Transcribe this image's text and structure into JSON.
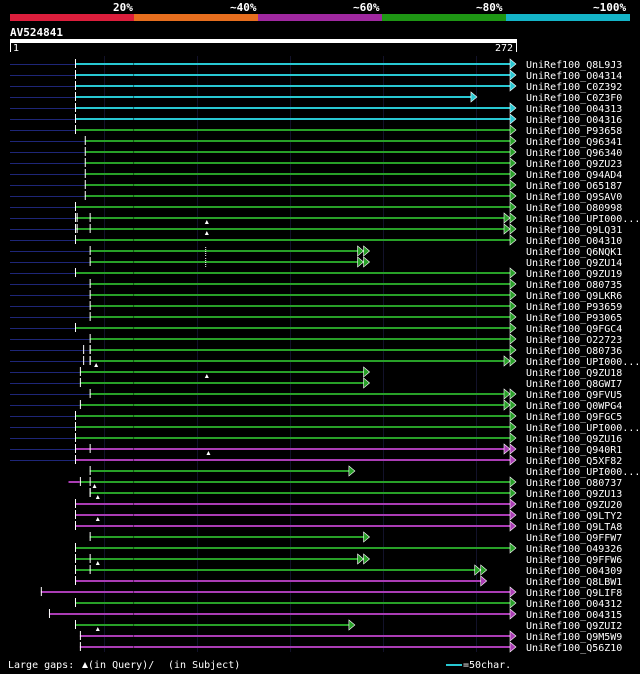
{
  "colors": {
    "background": "#000000",
    "c20": "#dc1e3c",
    "c40": "#e66e1e",
    "c60": "#a028a0",
    "c80": "#1e9614",
    "c100": "#14b4c8",
    "green": "#28a028",
    "magenta": "#aa3cb4",
    "cyan": "#28c8d2",
    "unaligned": "#1e2678",
    "queryBar": "#ffffff",
    "text": "#ffffff"
  },
  "legend": {
    "segments": [
      {
        "label": "20%",
        "color": "#dc1e3c"
      },
      {
        "label": "~40%",
        "color": "#e66e1e"
      },
      {
        "label": "~60%",
        "color": "#a028a0"
      },
      {
        "label": "~80%",
        "color": "#1e9614"
      },
      {
        "label": "~100%",
        "color": "#14b4c8"
      }
    ]
  },
  "query": {
    "id": "AV524841",
    "start_label": "1",
    "end_label": "272",
    "length": 272
  },
  "footer": {
    "large_gaps_label": "Large gaps:",
    "in_query": "(in Query)/",
    "in_subject": "(in Subject)",
    "scale_label": "=50char."
  },
  "hits": [
    {
      "name": "UniRef100_Q8L9J3",
      "color": "cyan",
      "qs": 1,
      "qe": 272,
      "lead": 60,
      "arrow": "single"
    },
    {
      "name": "UniRef100_O04314",
      "color": "cyan",
      "qs": 1,
      "qe": 272,
      "lead": 60,
      "arrow": "single"
    },
    {
      "name": "UniRef100_C0Z392",
      "color": "cyan",
      "qs": 1,
      "qe": 272,
      "lead": 60,
      "arrow": "single"
    },
    {
      "name": "UniRef100_C0Z3F0",
      "color": "cyan",
      "qs": 1,
      "qe": 248,
      "lead": 60,
      "arrow": "single"
    },
    {
      "name": "UniRef100_O04313",
      "color": "cyan",
      "qs": 1,
      "qe": 272,
      "lead": 60,
      "arrow": "single"
    },
    {
      "name": "UniRef100_O04316",
      "color": "cyan",
      "qs": 1,
      "qe": 272,
      "lead": 60,
      "arrow": "single"
    },
    {
      "name": "UniRef100_P93658",
      "color": "green",
      "qs": 1,
      "qe": 272,
      "lead": 60,
      "arrow": "single"
    },
    {
      "name": "UniRef100_Q96341",
      "color": "green",
      "qs": 7,
      "qe": 272,
      "lead": 60,
      "arrow": "single"
    },
    {
      "name": "UniRef100_Q96340",
      "color": "green",
      "qs": 7,
      "qe": 272,
      "lead": 60,
      "arrow": "single"
    },
    {
      "name": "UniRef100_Q9ZU23",
      "color": "green",
      "qs": 7,
      "qe": 272,
      "lead": 60,
      "arrow": "single"
    },
    {
      "name": "UniRef100_Q94AD4",
      "color": "green",
      "qs": 7,
      "qe": 272,
      "lead": 60,
      "arrow": "single"
    },
    {
      "name": "UniRef100_O65187",
      "color": "green",
      "qs": 7,
      "qe": 272,
      "lead": 60,
      "arrow": "single"
    },
    {
      "name": "UniRef100_Q9SAV0",
      "color": "green",
      "qs": 7,
      "qe": 272,
      "lead": 60,
      "arrow": "single"
    },
    {
      "name": "UniRef100_O80998",
      "color": "green",
      "qs": 1,
      "qe": 272,
      "lead": 60,
      "arrow": "single"
    },
    {
      "name": "UniRef100_UPI000...",
      "color": "green",
      "qs": 1,
      "qe": 272,
      "lead": 60,
      "arrow": "double",
      "gapQ": [
        82
      ],
      "ticks": [
        2,
        10
      ]
    },
    {
      "name": "UniRef100_Q9LQ31",
      "color": "green",
      "qs": 1,
      "qe": 272,
      "lead": 60,
      "arrow": "double",
      "gapQ": [
        82
      ],
      "ticks": [
        2,
        10
      ]
    },
    {
      "name": "UniRef100_O04310",
      "color": "green",
      "qs": 1,
      "qe": 272,
      "lead": 60,
      "arrow": "single"
    },
    {
      "name": "UniRef100_Q6NQK1",
      "color": "green",
      "qs": 10,
      "qe": 182,
      "lead": 60,
      "arrow": "double",
      "dash": 81
    },
    {
      "name": "UniRef100_Q9ZU14",
      "color": "green",
      "qs": 10,
      "qe": 182,
      "lead": 60,
      "arrow": "double",
      "dash": 81
    },
    {
      "name": "UniRef100_Q9ZU19",
      "color": "green",
      "qs": 1,
      "qe": 272,
      "lead": 60,
      "arrow": "single"
    },
    {
      "name": "UniRef100_O80735",
      "color": "green",
      "qs": 10,
      "qe": 272,
      "lead": 60,
      "arrow": "single"
    },
    {
      "name": "UniRef100_Q9LKR6",
      "color": "green",
      "qs": 10,
      "qe": 272,
      "lead": 60,
      "arrow": "single"
    },
    {
      "name": "UniRef100_P93659",
      "color": "green",
      "qs": 10,
      "qe": 272,
      "lead": 60,
      "arrow": "single"
    },
    {
      "name": "UniRef100_P93065",
      "color": "green",
      "qs": 10,
      "qe": 272,
      "lead": 60,
      "arrow": "single"
    },
    {
      "name": "UniRef100_Q9FGC4",
      "color": "green",
      "qs": 1,
      "qe": 272,
      "lead": 60,
      "arrow": "single"
    },
    {
      "name": "UniRef100_O22723",
      "color": "green",
      "qs": 10,
      "qe": 272,
      "lead": 60,
      "arrow": "single"
    },
    {
      "name": "UniRef100_O80736",
      "color": "green",
      "qs": 10,
      "qe": 272,
      "lead": 60,
      "arrow": "single",
      "ticks": [
        6,
        10
      ]
    },
    {
      "name": "UniRef100_UPI000...",
      "color": "green",
      "qs": 10,
      "qe": 272,
      "lead": 60,
      "arrow": "double",
      "gapQ": [
        14
      ],
      "ticks": [
        6,
        10
      ]
    },
    {
      "name": "UniRef100_Q9ZU18",
      "color": "green",
      "qs": 4,
      "qe": 182,
      "lead": 60,
      "arrow": "single",
      "gapQ": [
        82
      ]
    },
    {
      "name": "UniRef100_Q8GWI7",
      "color": "green",
      "qs": 4,
      "qe": 182,
      "lead": 60,
      "arrow": "single"
    },
    {
      "name": "UniRef100_Q9FVU5",
      "color": "green",
      "qs": 10,
      "qe": 272,
      "lead": 60,
      "arrow": "double"
    },
    {
      "name": "UniRef100_Q0WPG4",
      "color": "green",
      "qs": 4,
      "qe": 272,
      "lead": 60,
      "arrow": "double"
    },
    {
      "name": "UniRef100_Q9FGC5",
      "color": "green",
      "qs": 1,
      "qe": 272,
      "lead": 60,
      "arrow": "single"
    },
    {
      "name": "UniRef100_UPI000...",
      "color": "green",
      "qs": 1,
      "qe": 272,
      "lead": 60,
      "arrow": "single"
    },
    {
      "name": "UniRef100_Q9ZU16",
      "color": "green",
      "qs": 1,
      "qe": 272,
      "lead": 60,
      "arrow": "single"
    },
    {
      "name": "UniRef100_Q940R1",
      "color": "magenta",
      "qs": 1,
      "qe": 272,
      "lead": 60,
      "arrow": "double",
      "gapQ": [
        83
      ],
      "ticks": [
        10
      ]
    },
    {
      "name": "UniRef100_Q5XF82",
      "color": "magenta",
      "qs": 1,
      "qe": 272,
      "lead": 60,
      "arrow": "single"
    },
    {
      "name": "UniRef100_UPI000...",
      "color": "green",
      "qs": 10,
      "qe": 173,
      "lead": 0,
      "arrow": "single"
    },
    {
      "name": "UniRef100_O80737",
      "color": "green",
      "qs": 4,
      "qe": 272,
      "lead": 0,
      "arrow": "single",
      "gapQ": [
        13
      ],
      "ticks": [
        10
      ],
      "pre": [
        -3,
        4
      ]
    },
    {
      "name": "UniRef100_Q9ZU13",
      "color": "green",
      "qs": 10,
      "qe": 272,
      "lead": 0,
      "arrow": "single",
      "gapQ": [
        15
      ],
      "ticks": [
        10
      ]
    },
    {
      "name": "UniRef100_Q9ZU20",
      "color": "magenta",
      "qs": 1,
      "qe": 272,
      "lead": 0,
      "arrow": "single"
    },
    {
      "name": "UniRef100_Q9LTY2",
      "color": "magenta",
      "qs": 1,
      "qe": 272,
      "lead": 0,
      "arrow": "single",
      "gapQ": [
        15
      ]
    },
    {
      "name": "UniRef100_Q9LTA8",
      "color": "magenta",
      "qs": 1,
      "qe": 272,
      "lead": 0,
      "arrow": "single"
    },
    {
      "name": "UniRef100_Q9FFW7",
      "color": "green",
      "qs": 10,
      "qe": 182,
      "lead": 0,
      "arrow": "single"
    },
    {
      "name": "UniRef100_O49326",
      "color": "green",
      "qs": 1,
      "qe": 272,
      "lead": 0,
      "arrow": "single"
    },
    {
      "name": "UniRef100_Q9FFW6",
      "color": "green",
      "qs": 1,
      "qe": 182,
      "lead": 0,
      "arrow": "double",
      "gapQ": [
        15
      ],
      "ticks": [
        10
      ]
    },
    {
      "name": "UniRef100_O04309",
      "color": "green",
      "qs": 1,
      "qe": 254,
      "lead": 0,
      "arrow": "double",
      "ticks": [
        10
      ]
    },
    {
      "name": "UniRef100_Q8LBW1",
      "color": "magenta",
      "qs": 1,
      "qe": 254,
      "lead": 0,
      "arrow": "single"
    },
    {
      "name": "UniRef100_Q9LIF8",
      "color": "magenta",
      "qs": -20,
      "qe": 272,
      "lead": 0,
      "arrow": "single"
    },
    {
      "name": "UniRef100_O04312",
      "color": "green",
      "qs": 1,
      "qe": 272,
      "lead": 0,
      "arrow": "single"
    },
    {
      "name": "UniRef100_O04315",
      "color": "magenta",
      "qs": -15,
      "qe": 272,
      "lead": 0,
      "arrow": "single"
    },
    {
      "name": "UniRef100_Q9ZUI2",
      "color": "green",
      "qs": 1,
      "qe": 173,
      "lead": 0,
      "arrow": "single",
      "gapQ": [
        15
      ]
    },
    {
      "name": "UniRef100_Q9M5W9",
      "color": "magenta",
      "qs": 4,
      "qe": 272,
      "lead": 0,
      "arrow": "single"
    },
    {
      "name": "UniRef100_Q56Z10",
      "color": "magenta",
      "qs": 4,
      "qe": 272,
      "lead": 0,
      "arrow": "single"
    }
  ]
}
